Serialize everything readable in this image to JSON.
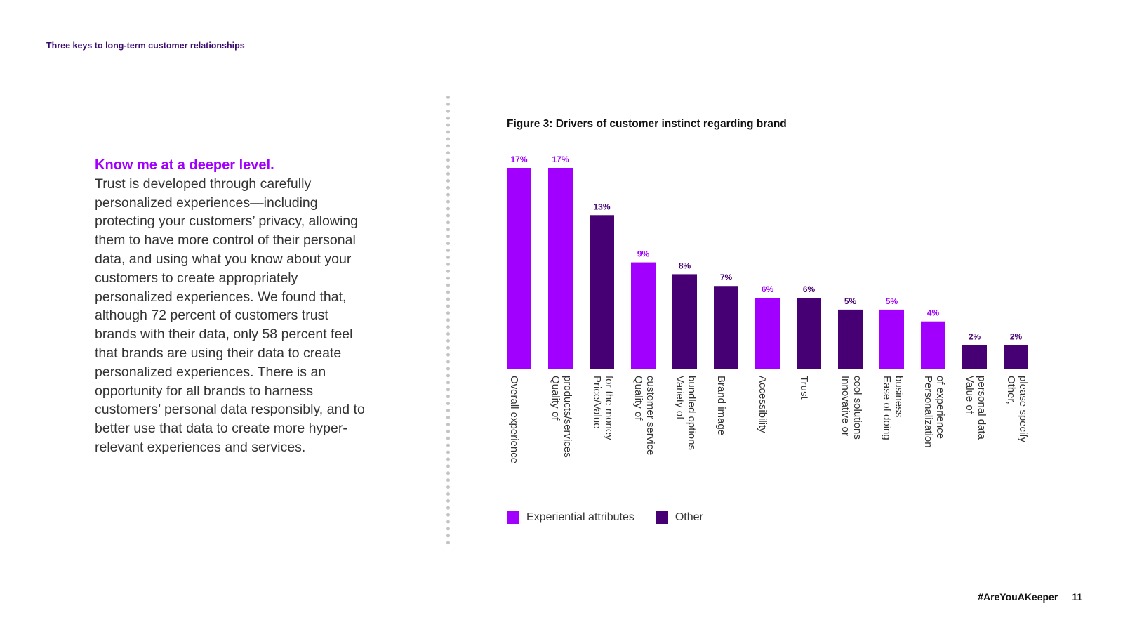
{
  "header": {
    "title": "Three keys to long-term customer relationships"
  },
  "text": {
    "lead": "Know me at a deeper level.",
    "body": "Trust is developed through carefully personalized experiences—including protecting your customers’ privacy, allowing them to have more control of their personal data, and using what you know about your customers to create appropriately personalized experiences. We found that, although 72 percent of customers trust brands with their data, only 58 percent feel that brands are using their data to create personalized experiences. There is an opportunity for all brands to harness customers’ personal data responsibly, and to better use that data to create more hyper-relevant experiences and services."
  },
  "colors": {
    "experiential": "#a100ff",
    "other": "#460073"
  },
  "chart_data": {
    "type": "bar",
    "title": "Figure 3: Drivers of customer instinct regarding brand",
    "categories": [
      [
        "Overall experience"
      ],
      [
        "Quality of",
        "products/services"
      ],
      [
        "Price/Value",
        "for the money"
      ],
      [
        "Quality of",
        "customer service"
      ],
      [
        "Variety of",
        "bundled options"
      ],
      [
        "Brand image"
      ],
      [
        "Accessibility"
      ],
      [
        "Trust"
      ],
      [
        "Innovative or",
        "cool solutions"
      ],
      [
        "Ease of doing",
        "business"
      ],
      [
        "Personalization",
        "of experience"
      ],
      [
        "Value of",
        "personal data"
      ],
      [
        "Other,",
        "please specify"
      ]
    ],
    "values": [
      17,
      17,
      13,
      9,
      8,
      7,
      6,
      6,
      5,
      5,
      4,
      2,
      2
    ],
    "value_labels": [
      "17%",
      "17%",
      "13%",
      "9%",
      "8%",
      "7%",
      "6%",
      "6%",
      "5%",
      "5%",
      "4%",
      "2%",
      "2%"
    ],
    "groups": [
      "experiential",
      "experiential",
      "other",
      "experiential",
      "other",
      "other",
      "experiential",
      "other",
      "other",
      "experiential",
      "experiential",
      "other",
      "other"
    ],
    "ylim": [
      0,
      17
    ],
    "legend": [
      {
        "key": "experiential",
        "label": "Experiential attributes"
      },
      {
        "key": "other",
        "label": "Other"
      }
    ]
  },
  "footer": {
    "hashtag": "#AreYouAKeeper",
    "page": "11"
  }
}
